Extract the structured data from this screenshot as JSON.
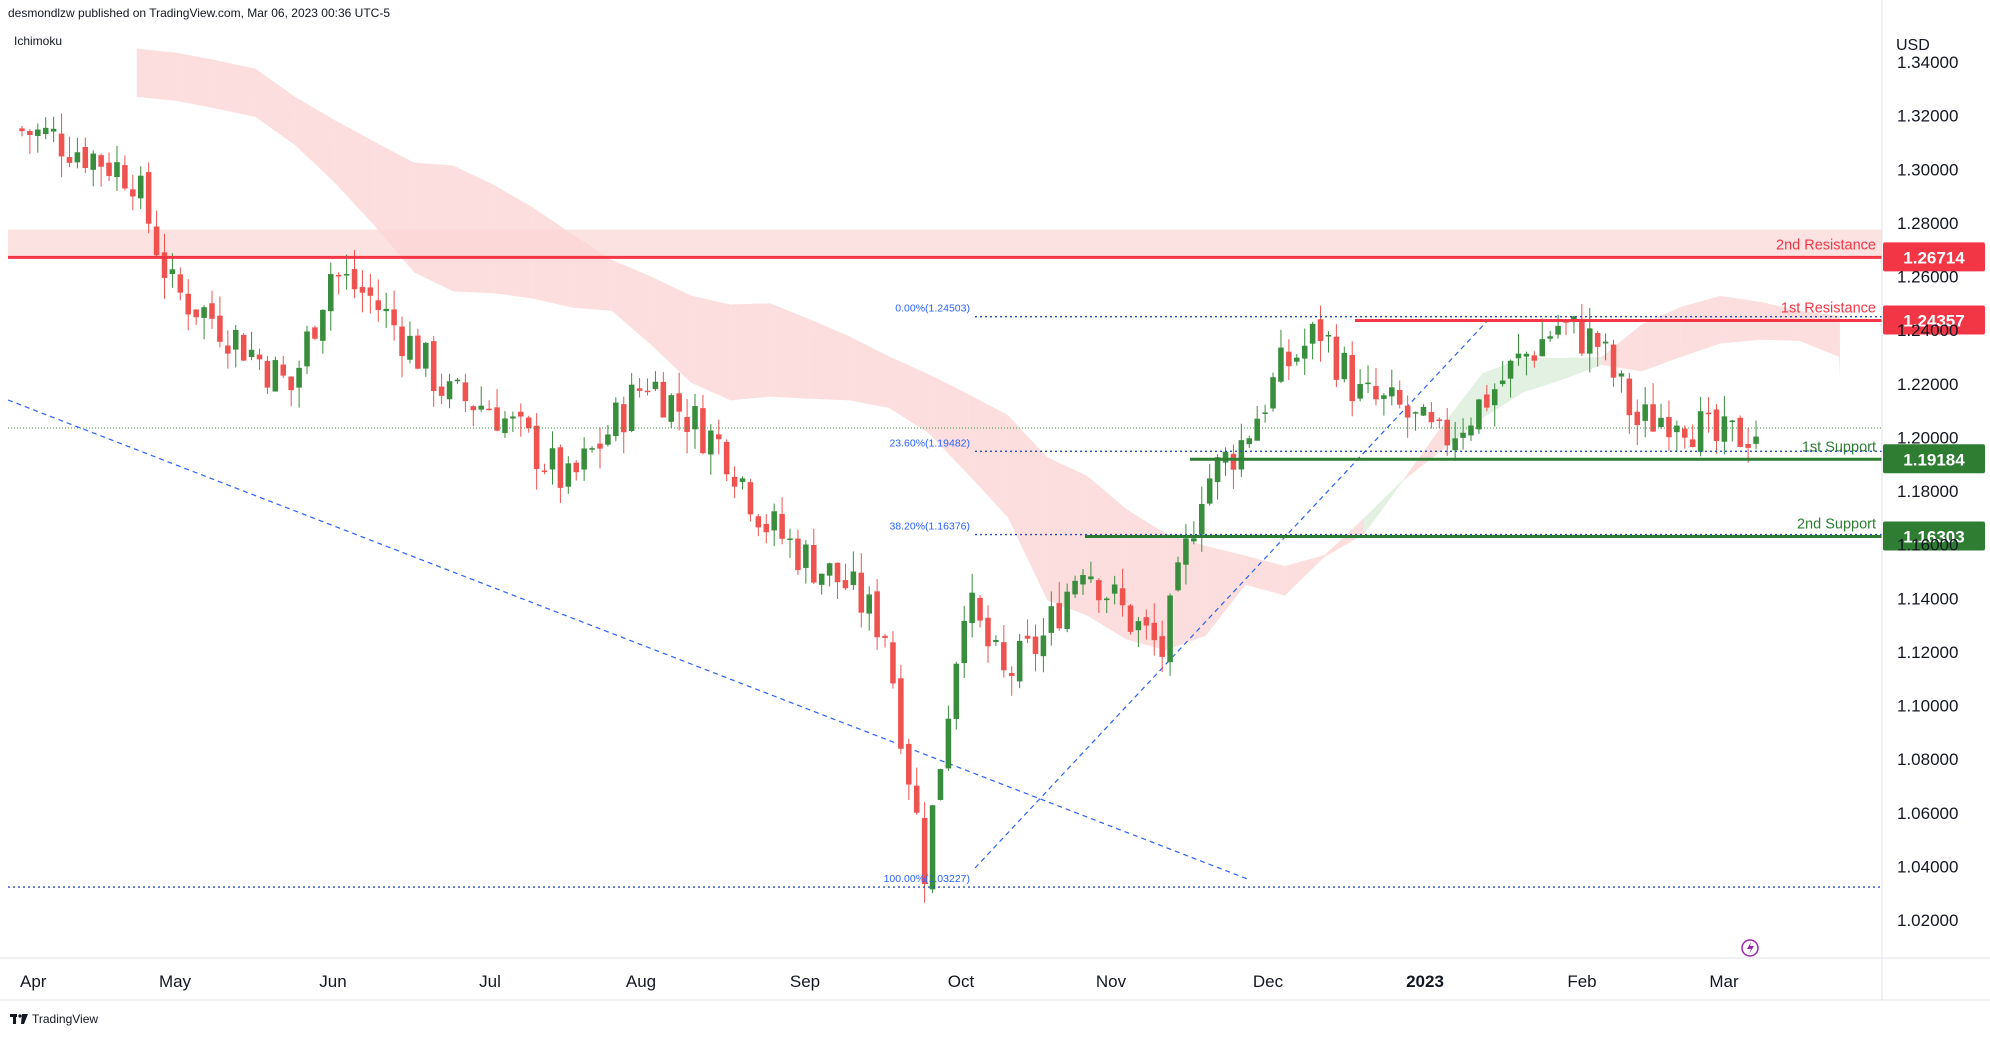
{
  "header": {
    "publisher": "desmondlzw published on TradingView.com, Mar 06, 2023 00:36 UTC-5",
    "indicator": "Ichimoku"
  },
  "footer": {
    "brand": "TradingView",
    "icon": "tradingview-logo-icon"
  },
  "axis": {
    "currency": "USD"
  },
  "colors": {
    "up": "#26a69a",
    "upBody": "#388e3c",
    "down": "#ef5350",
    "resistance": "#f23645",
    "support": "#2e7d32",
    "fib": "#2962ff",
    "cloudRed": "#fbd3d3",
    "cloudGreen": "#d9ecd9",
    "zone": "#fcd6d6"
  },
  "chart_data": {
    "type": "candlestick",
    "title": "",
    "ylabel": "USD",
    "ylim": [
      1.0,
      1.35
    ],
    "y_ticks": [
      "1.34000",
      "1.32000",
      "1.30000",
      "1.28000",
      "1.26000",
      "1.24000",
      "1.22000",
      "1.20000",
      "1.18000",
      "1.16000",
      "1.14000",
      "1.12000",
      "1.10000",
      "1.08000",
      "1.06000",
      "1.04000",
      "1.02000"
    ],
    "x_ticks": [
      "Apr",
      "May",
      "Jun",
      "Jul",
      "Aug",
      "Sep",
      "Oct",
      "Nov",
      "Dec",
      "2023",
      "Feb",
      "Mar"
    ],
    "close_path": [
      [
        "Apr",
        1.315
      ],
      [
        "Apr",
        1.312
      ],
      [
        "Apr",
        1.305
      ],
      [
        "Apr",
        1.298
      ],
      [
        "May",
        1.255
      ],
      [
        "May",
        1.245
      ],
      [
        "May",
        1.232
      ],
      [
        "May",
        1.218
      ],
      [
        "Jun",
        1.262
      ],
      [
        "Jun",
        1.252
      ],
      [
        "Jun",
        1.235
      ],
      [
        "Jun",
        1.215
      ],
      [
        "Jul",
        1.212
      ],
      [
        "Jul",
        1.198
      ],
      [
        "Jul",
        1.182
      ],
      [
        "Jul",
        1.202
      ],
      [
        "Aug",
        1.222
      ],
      [
        "Aug",
        1.208
      ],
      [
        "Aug",
        1.195
      ],
      [
        "Aug",
        1.168
      ],
      [
        "Sep",
        1.155
      ],
      [
        "Sep",
        1.145
      ],
      [
        "Sep",
        1.128
      ],
      [
        "Sep",
        1.04
      ],
      [
        "Oct",
        1.14
      ],
      [
        "Oct",
        1.11
      ],
      [
        "Oct",
        1.125
      ],
      [
        "Oct",
        1.155
      ],
      [
        "Nov",
        1.135
      ],
      [
        "Nov",
        1.12
      ],
      [
        "Nov",
        1.182
      ],
      [
        "Nov",
        1.198
      ],
      [
        "Dec",
        1.225
      ],
      [
        "Dec",
        1.24
      ],
      [
        "Dec",
        1.215
      ],
      [
        "Dec",
        1.21
      ],
      [
        "2023",
        1.198
      ],
      [
        "2023",
        1.212
      ],
      [
        "2023",
        1.228
      ],
      [
        "2023",
        1.242
      ],
      [
        "Feb",
        1.235
      ],
      [
        "Feb",
        1.205
      ],
      [
        "Feb",
        1.21
      ],
      [
        "Feb",
        1.198
      ],
      [
        "Mar",
        1.203
      ]
    ],
    "levels": [
      {
        "label": "2nd Resistance",
        "value": "1.26714",
        "price": 1.26714,
        "kind": "resistance"
      },
      {
        "label": "1st Resistance",
        "value": "1.24357",
        "price": 1.24357,
        "kind": "resistance"
      },
      {
        "label": "1st Support",
        "value": "1.19184",
        "price": 1.19184,
        "kind": "support"
      },
      {
        "label": "2nd Support",
        "value": "1.16303",
        "price": 1.16303,
        "kind": "support"
      }
    ],
    "fib_levels": [
      {
        "label": "0.00%(1.24503)",
        "price": 1.24503
      },
      {
        "label": "23.60%(1.19482)",
        "price": 1.19482
      },
      {
        "label": "38.20%(1.16376)",
        "price": 1.16376
      },
      {
        "label": "100.00%(1.03227)",
        "price": 1.03227
      }
    ],
    "resistance_zone": [
      1.2672,
      1.2775
    ],
    "current_price": 1.2035
  }
}
